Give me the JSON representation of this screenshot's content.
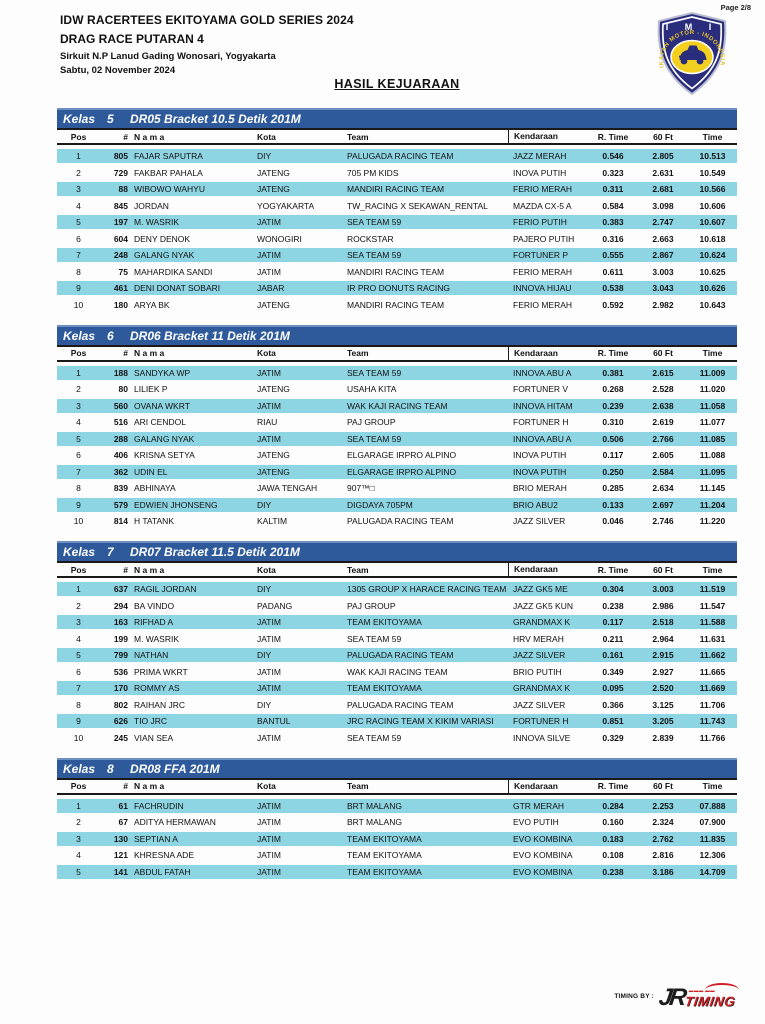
{
  "page": {
    "page_label": "Page 2/8",
    "header": {
      "title": "IDW RACERTEES EKITOYAMA GOLD SERIES 2024",
      "subtitle": "DRAG RACE PUTARAN 4",
      "venue": "Sirkuit N.P Lanud Gading Wonosari, Yogyakarta",
      "date": "Sabtu, 02 November 2024"
    },
    "section_title": "HASIL KEJUARAAN",
    "badge": {
      "top_text": "I M I",
      "ring_text": "IKATAN MOTOR - INDONESIA"
    },
    "footer": {
      "timing_by_label": "TIMING BY :",
      "logo_jr": "JR",
      "logo_timing": "TIMING"
    }
  },
  "colors": {
    "class_bar_blue": "#2e5a9c",
    "row_highlight_cyan": "#8ed5e4",
    "badge_navy": "#2a2d7c",
    "badge_yellow": "#f3cf1f",
    "timing_red": "#cf1f25"
  },
  "columns": [
    "Pos",
    "#",
    "N a m a",
    "Kota",
    "Team",
    "Kendaraan",
    "R. Time",
    "60 Ft",
    "Time"
  ],
  "tables": [
    {
      "kelas_label": "Kelas",
      "kelas_number": "5",
      "title": "DR05 Bracket 10.5 Detik 201M",
      "rows": [
        {
          "pos": "1",
          "num": "805",
          "nama": "FAJAR SAPUTRA",
          "kota": "DIY",
          "team": "PALUGADA RACING TEAM",
          "kendaraan": "JAZZ MERAH",
          "rtime": "0.546",
          "ft60": "2.805",
          "time": "10.513"
        },
        {
          "pos": "2",
          "num": "729",
          "nama": "FAKBAR PAHALA",
          "kota": "JATENG",
          "team": "705 PM KIDS",
          "kendaraan": "INOVA PUTIH",
          "rtime": "0.323",
          "ft60": "2.631",
          "time": "10.549"
        },
        {
          "pos": "3",
          "num": "88",
          "nama": "WIBOWO WAHYU",
          "kota": "JATENG",
          "team": "MANDIRI RACING TEAM",
          "kendaraan": "FERIO MERAH",
          "rtime": "0.311",
          "ft60": "2.681",
          "time": "10.566"
        },
        {
          "pos": "4",
          "num": "845",
          "nama": "JORDAN",
          "kota": "YOGYAKARTA",
          "team": "TW_RACING X SEKAWAN_RENTAL",
          "kendaraan": "MAZDA CX-5 A",
          "rtime": "0.584",
          "ft60": "3.098",
          "time": "10.606"
        },
        {
          "pos": "5",
          "num": "197",
          "nama": "M. WASRIK",
          "kota": "JATIM",
          "team": "SEA TEAM 59",
          "kendaraan": "FERIO PUTIH",
          "rtime": "0.383",
          "ft60": "2.747",
          "time": "10.607"
        },
        {
          "pos": "6",
          "num": "604",
          "nama": "DENY DENOK",
          "kota": "WONOGIRI",
          "team": "ROCKSTAR",
          "kendaraan": "PAJERO PUTIH",
          "rtime": "0.316",
          "ft60": "2.663",
          "time": "10.618"
        },
        {
          "pos": "7",
          "num": "248",
          "nama": "GALANG NYAK",
          "kota": "JATIM",
          "team": "SEA TEAM 59",
          "kendaraan": "FORTUNER P",
          "rtime": "0.555",
          "ft60": "2.867",
          "time": "10.624"
        },
        {
          "pos": "8",
          "num": "75",
          "nama": "MAHARDIKA SANDI",
          "kota": "JATIM",
          "team": "MANDIRI RACING TEAM",
          "kendaraan": "FERIO MERAH",
          "rtime": "0.611",
          "ft60": "3.003",
          "time": "10.625"
        },
        {
          "pos": "9",
          "num": "461",
          "nama": "DENI DONAT SOBARI",
          "kota": "JABAR",
          "team": "IR PRO DONUTS RACING",
          "kendaraan": "INNOVA HIJAU",
          "rtime": "0.538",
          "ft60": "3.043",
          "time": "10.626"
        },
        {
          "pos": "10",
          "num": "180",
          "nama": "ARYA BK",
          "kota": "JATENG",
          "team": "MANDIRI RACING TEAM",
          "kendaraan": "FERIO MERAH",
          "rtime": "0.592",
          "ft60": "2.982",
          "time": "10.643"
        }
      ]
    },
    {
      "kelas_label": "Kelas",
      "kelas_number": "6",
      "title": "DR06 Bracket 11 Detik 201M",
      "rows": [
        {
          "pos": "1",
          "num": "188",
          "nama": "SANDYKA WP",
          "kota": "JATIM",
          "team": "SEA TEAM 59",
          "kendaraan": "INNOVA ABU A",
          "rtime": "0.381",
          "ft60": "2.615",
          "time": "11.009"
        },
        {
          "pos": "2",
          "num": "80",
          "nama": "LILIEK P",
          "kota": "JATENG",
          "team": "USAHA KITA",
          "kendaraan": "FORTUNER V",
          "rtime": "0.268",
          "ft60": "2.528",
          "time": "11.020"
        },
        {
          "pos": "3",
          "num": "560",
          "nama": "OVANA WKRT",
          "kota": "JATIM",
          "team": "WAK KAJI RACING TEAM",
          "kendaraan": "INNOVA HITAM",
          "rtime": "0.239",
          "ft60": "2.638",
          "time": "11.058"
        },
        {
          "pos": "4",
          "num": "516",
          "nama": "ARI CENDOL",
          "kota": "RIAU",
          "team": "PAJ GROUP",
          "kendaraan": "FORTUNER H",
          "rtime": "0.310",
          "ft60": "2.619",
          "time": "11.077"
        },
        {
          "pos": "5",
          "num": "288",
          "nama": "GALANG NYAK",
          "kota": "JATIM",
          "team": "SEA TEAM 59",
          "kendaraan": "INNOVA ABU A",
          "rtime": "0.506",
          "ft60": "2.766",
          "time": "11.085"
        },
        {
          "pos": "6",
          "num": "406",
          "nama": "KRISNA SETYA",
          "kota": "JATENG",
          "team": "ELGARAGE IRPRO ALPINO",
          "kendaraan": "INOVA PUTIH",
          "rtime": "0.117",
          "ft60": "2.605",
          "time": "11.088"
        },
        {
          "pos": "7",
          "num": "362",
          "nama": "UDIN EL",
          "kota": "JATENG",
          "team": "ELGARAGE IRPRO ALPINO",
          "kendaraan": "INOVA PUTIH",
          "rtime": "0.250",
          "ft60": "2.584",
          "time": "11.095"
        },
        {
          "pos": "8",
          "num": "839",
          "nama": "ABHINAYA",
          "kota": "JAWA TENGAH",
          "team": "907™□",
          "kendaraan": "BRIO MERAH",
          "rtime": "0.285",
          "ft60": "2.634",
          "time": "11.145"
        },
        {
          "pos": "9",
          "num": "579",
          "nama": "EDWIEN JHONSENG",
          "kota": "DIY",
          "team": "DIGDAYA 705PM",
          "kendaraan": "BRIO ABU2",
          "rtime": "0.133",
          "ft60": "2.697",
          "time": "11.204"
        },
        {
          "pos": "10",
          "num": "814",
          "nama": "H TATANK",
          "kota": "KALTIM",
          "team": "PALUGADA RACING TEAM",
          "kendaraan": "JAZZ SILVER",
          "rtime": "0.046",
          "ft60": "2.746",
          "time": "11.220"
        }
      ]
    },
    {
      "kelas_label": "Kelas",
      "kelas_number": "7",
      "title": "DR07 Bracket 11.5 Detik 201M",
      "rows": [
        {
          "pos": "1",
          "num": "637",
          "nama": "RAGIL JORDAN",
          "kota": "DIY",
          "team": "1305 GROUP X HARACE RACING TEAM",
          "kendaraan": "JAZZ GK5 ME",
          "rtime": "0.304",
          "ft60": "3.003",
          "time": "11.519"
        },
        {
          "pos": "2",
          "num": "294",
          "nama": "BA VINDO",
          "kota": "PADANG",
          "team": "PAJ GROUP",
          "kendaraan": "JAZZ GK5 KUN",
          "rtime": "0.238",
          "ft60": "2.986",
          "time": "11.547"
        },
        {
          "pos": "3",
          "num": "163",
          "nama": "RIFHAD A",
          "kota": "JATIM",
          "team": "TEAM EKITOYAMA",
          "kendaraan": "GRANDMAX K",
          "rtime": "0.117",
          "ft60": "2.518",
          "time": "11.588"
        },
        {
          "pos": "4",
          "num": "199",
          "nama": "M. WASRIK",
          "kota": "JATIM",
          "team": "SEA TEAM 59",
          "kendaraan": "HRV MERAH",
          "rtime": "0.211",
          "ft60": "2.964",
          "time": "11.631"
        },
        {
          "pos": "5",
          "num": "799",
          "nama": "NATHAN",
          "kota": "DIY",
          "team": "PALUGADA RACING TEAM",
          "kendaraan": "JAZZ SILVER",
          "rtime": "0.161",
          "ft60": "2.915",
          "time": "11.662"
        },
        {
          "pos": "6",
          "num": "536",
          "nama": "PRIMA WKRT",
          "kota": "JATIM",
          "team": "WAK KAJI RACING TEAM",
          "kendaraan": "BRIO PUTIH",
          "rtime": "0.349",
          "ft60": "2.927",
          "time": "11.665"
        },
        {
          "pos": "7",
          "num": "170",
          "nama": "ROMMY AS",
          "kota": "JATIM",
          "team": "TEAM EKITOYAMA",
          "kendaraan": "GRANDMAX K",
          "rtime": "0.095",
          "ft60": "2.520",
          "time": "11.669"
        },
        {
          "pos": "8",
          "num": "802",
          "nama": "RAIHAN JRC",
          "kota": "DIY",
          "team": "PALUGADA RACING TEAM",
          "kendaraan": "JAZZ SILVER",
          "rtime": "0.366",
          "ft60": "3.125",
          "time": "11.706"
        },
        {
          "pos": "9",
          "num": "626",
          "nama": "TIO JRC",
          "kota": "BANTUL",
          "team": "JRC RACING TEAM X KIKIM VARIASI",
          "kendaraan": "FORTUNER H",
          "rtime": "0.851",
          "ft60": "3.205",
          "time": "11.743"
        },
        {
          "pos": "10",
          "num": "245",
          "nama": "VIAN SEA",
          "kota": "JATIM",
          "team": "SEA TEAM 59",
          "kendaraan": "INNOVA SILVE",
          "rtime": "0.329",
          "ft60": "2.839",
          "time": "11.766"
        }
      ]
    },
    {
      "kelas_label": "Kelas",
      "kelas_number": "8",
      "title": "DR08 FFA 201M",
      "rows": [
        {
          "pos": "1",
          "num": "61",
          "nama": "FACHRUDIN",
          "kota": "JATIM",
          "team": "BRT MALANG",
          "kendaraan": "GTR MERAH",
          "rtime": "0.284",
          "ft60": "2.253",
          "time": "07.888"
        },
        {
          "pos": "2",
          "num": "67",
          "nama": "ADITYA HERMAWAN",
          "kota": "JATIM",
          "team": "BRT MALANG",
          "kendaraan": "EVO PUTIH",
          "rtime": "0.160",
          "ft60": "2.324",
          "time": "07.900"
        },
        {
          "pos": "3",
          "num": "130",
          "nama": "SEPTIAN A",
          "kota": "JATIM",
          "team": "TEAM EKITOYAMA",
          "kendaraan": "EVO KOMBINA",
          "rtime": "0.183",
          "ft60": "2.762",
          "time": "11.835"
        },
        {
          "pos": "4",
          "num": "121",
          "nama": "KHRESNA ADE",
          "kota": "JATIM",
          "team": "TEAM EKITOYAMA",
          "kendaraan": "EVO KOMBINA",
          "rtime": "0.108",
          "ft60": "2.816",
          "time": "12.306"
        },
        {
          "pos": "5",
          "num": "141",
          "nama": "ABDUL FATAH",
          "kota": "JATIM",
          "team": "TEAM EKITOYAMA",
          "kendaraan": "EVO KOMBINA",
          "rtime": "0.238",
          "ft60": "3.186",
          "time": "14.709"
        }
      ]
    }
  ]
}
